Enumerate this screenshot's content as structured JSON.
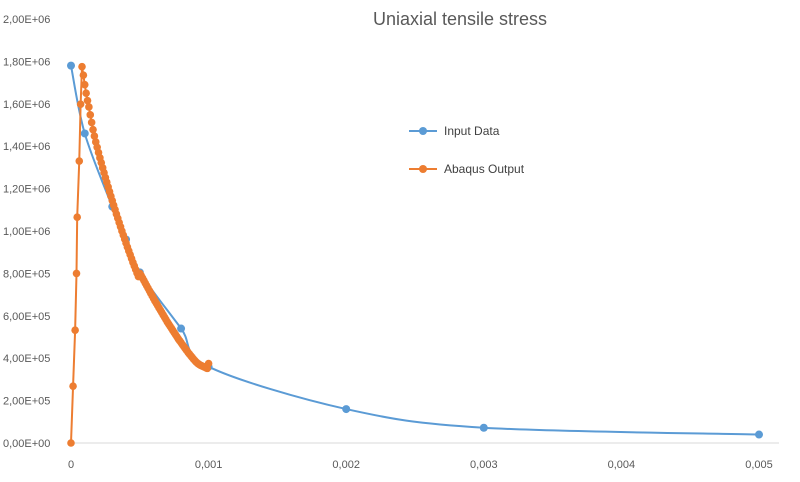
{
  "chart_data": {
    "type": "scatter",
    "title": "Uniaxial tensile stress",
    "xlabel": "",
    "ylabel": "",
    "xlim": [
      0,
      0.005
    ],
    "ylim": [
      0,
      2000000
    ],
    "x_ticks": [
      "0",
      "0,001",
      "0,002",
      "0,003",
      "0,004",
      "0,005"
    ],
    "y_ticks": [
      "0,00E+00",
      "2,00E+05",
      "4,00E+05",
      "6,00E+05",
      "8,00E+05",
      "1,00E+06",
      "1,20E+06",
      "1,40E+06",
      "1,60E+06",
      "1,80E+06",
      "2,00E+06"
    ],
    "grid": false,
    "legend_position": "right",
    "series": [
      {
        "name": "Input Data",
        "color": "#5B9BD5",
        "smooth": true,
        "points": [
          [
            0,
            1780000
          ],
          [
            0.0001,
            1460000
          ],
          [
            0.0003,
            1115000
          ],
          [
            0.0004,
            960000
          ],
          [
            0.0005,
            805000
          ],
          [
            0.0008,
            540000
          ],
          [
            0.001,
            360000
          ],
          [
            0.002,
            160000
          ],
          [
            0.003,
            72000
          ],
          [
            0.005,
            40000
          ]
        ]
      },
      {
        "name": "Abaqus Output",
        "color": "#ED7D31",
        "smooth": false,
        "points": [
          [
            0,
            0
          ],
          [
            1.5e-05,
            268000
          ],
          [
            3e-05,
            532000
          ],
          [
            4e-05,
            800000
          ],
          [
            4.5e-05,
            1065000
          ],
          [
            6e-05,
            1330000
          ],
          [
            7e-05,
            1598000
          ],
          [
            8e-05,
            1775000
          ],
          [
            9e-05,
            1735000
          ],
          [
            0.0001,
            1690000
          ],
          [
            0.00011,
            1650000
          ],
          [
            0.00012,
            1615000
          ],
          [
            0.00013,
            1585000
          ],
          [
            0.00014,
            1548000
          ],
          [
            0.00015,
            1512000
          ],
          [
            0.00016,
            1478000
          ],
          [
            0.00017,
            1448000
          ],
          [
            0.00018,
            1420000
          ],
          [
            0.00019,
            1395000
          ],
          [
            0.0002,
            1370000
          ],
          [
            0.00021,
            1345000
          ],
          [
            0.00022,
            1322000
          ],
          [
            0.00023,
            1298000
          ],
          [
            0.00024,
            1275000
          ],
          [
            0.00025,
            1252000
          ],
          [
            0.00026,
            1230000
          ],
          [
            0.00027,
            1208000
          ],
          [
            0.00028,
            1186000
          ],
          [
            0.00029,
            1164000
          ],
          [
            0.0003,
            1143000
          ],
          [
            0.00031,
            1122000
          ],
          [
            0.00032,
            1101000
          ],
          [
            0.00033,
            1080000
          ],
          [
            0.00034,
            1060000
          ],
          [
            0.00035,
            1040000
          ],
          [
            0.00036,
            1020000
          ],
          [
            0.00037,
            1000000
          ],
          [
            0.00038,
            981000
          ],
          [
            0.00039,
            962000
          ],
          [
            0.0004,
            943000
          ],
          [
            0.00041,
            924000
          ],
          [
            0.00042,
            906000
          ],
          [
            0.00043,
            888000
          ],
          [
            0.00044,
            870000
          ],
          [
            0.00045,
            852000
          ],
          [
            0.00046,
            835000
          ],
          [
            0.00047,
            818000
          ],
          [
            0.00048,
            801000
          ],
          [
            0.00049,
            785000
          ],
          [
            0.0005,
            800000
          ],
          [
            0.00051,
            790000
          ],
          [
            0.00052,
            778000
          ],
          [
            0.00053,
            766000
          ],
          [
            0.00054,
            754000
          ],
          [
            0.00055,
            742000
          ],
          [
            0.00056,
            730000
          ],
          [
            0.00057,
            718000
          ],
          [
            0.00058,
            706000
          ],
          [
            0.00059,
            694000
          ],
          [
            0.0006,
            682000
          ],
          [
            0.00061,
            670000
          ],
          [
            0.00062,
            659000
          ],
          [
            0.00063,
            648000
          ],
          [
            0.00064,
            637000
          ],
          [
            0.00065,
            626000
          ],
          [
            0.00066,
            615000
          ],
          [
            0.00067,
            604000
          ],
          [
            0.00068,
            593000
          ],
          [
            0.00069,
            582000
          ],
          [
            0.0007,
            571000
          ],
          [
            0.00071,
            561000
          ],
          [
            0.00072,
            551000
          ],
          [
            0.00073,
            541000
          ],
          [
            0.00074,
            531000
          ],
          [
            0.00075,
            521000
          ],
          [
            0.00076,
            511000
          ],
          [
            0.00077,
            501000
          ],
          [
            0.00078,
            491000
          ],
          [
            0.00079,
            482000
          ],
          [
            0.0008,
            473000
          ],
          [
            0.00081,
            464000
          ],
          [
            0.00082,
            455000
          ],
          [
            0.00083,
            446000
          ],
          [
            0.00084,
            437000
          ],
          [
            0.00085,
            428000
          ],
          [
            0.00086,
            420000
          ],
          [
            0.00087,
            412000
          ],
          [
            0.00088,
            404000
          ],
          [
            0.00089,
            396000
          ],
          [
            0.0009,
            389000
          ],
          [
            0.00091,
            382000
          ],
          [
            0.00092,
            376000
          ],
          [
            0.00093,
            371000
          ],
          [
            0.00094,
            367000
          ],
          [
            0.00095,
            364000
          ],
          [
            0.00096,
            361000
          ],
          [
            0.00097,
            358000
          ],
          [
            0.00098,
            355000
          ],
          [
            0.00099,
            352000
          ],
          [
            0.001,
            375000
          ]
        ]
      }
    ]
  }
}
